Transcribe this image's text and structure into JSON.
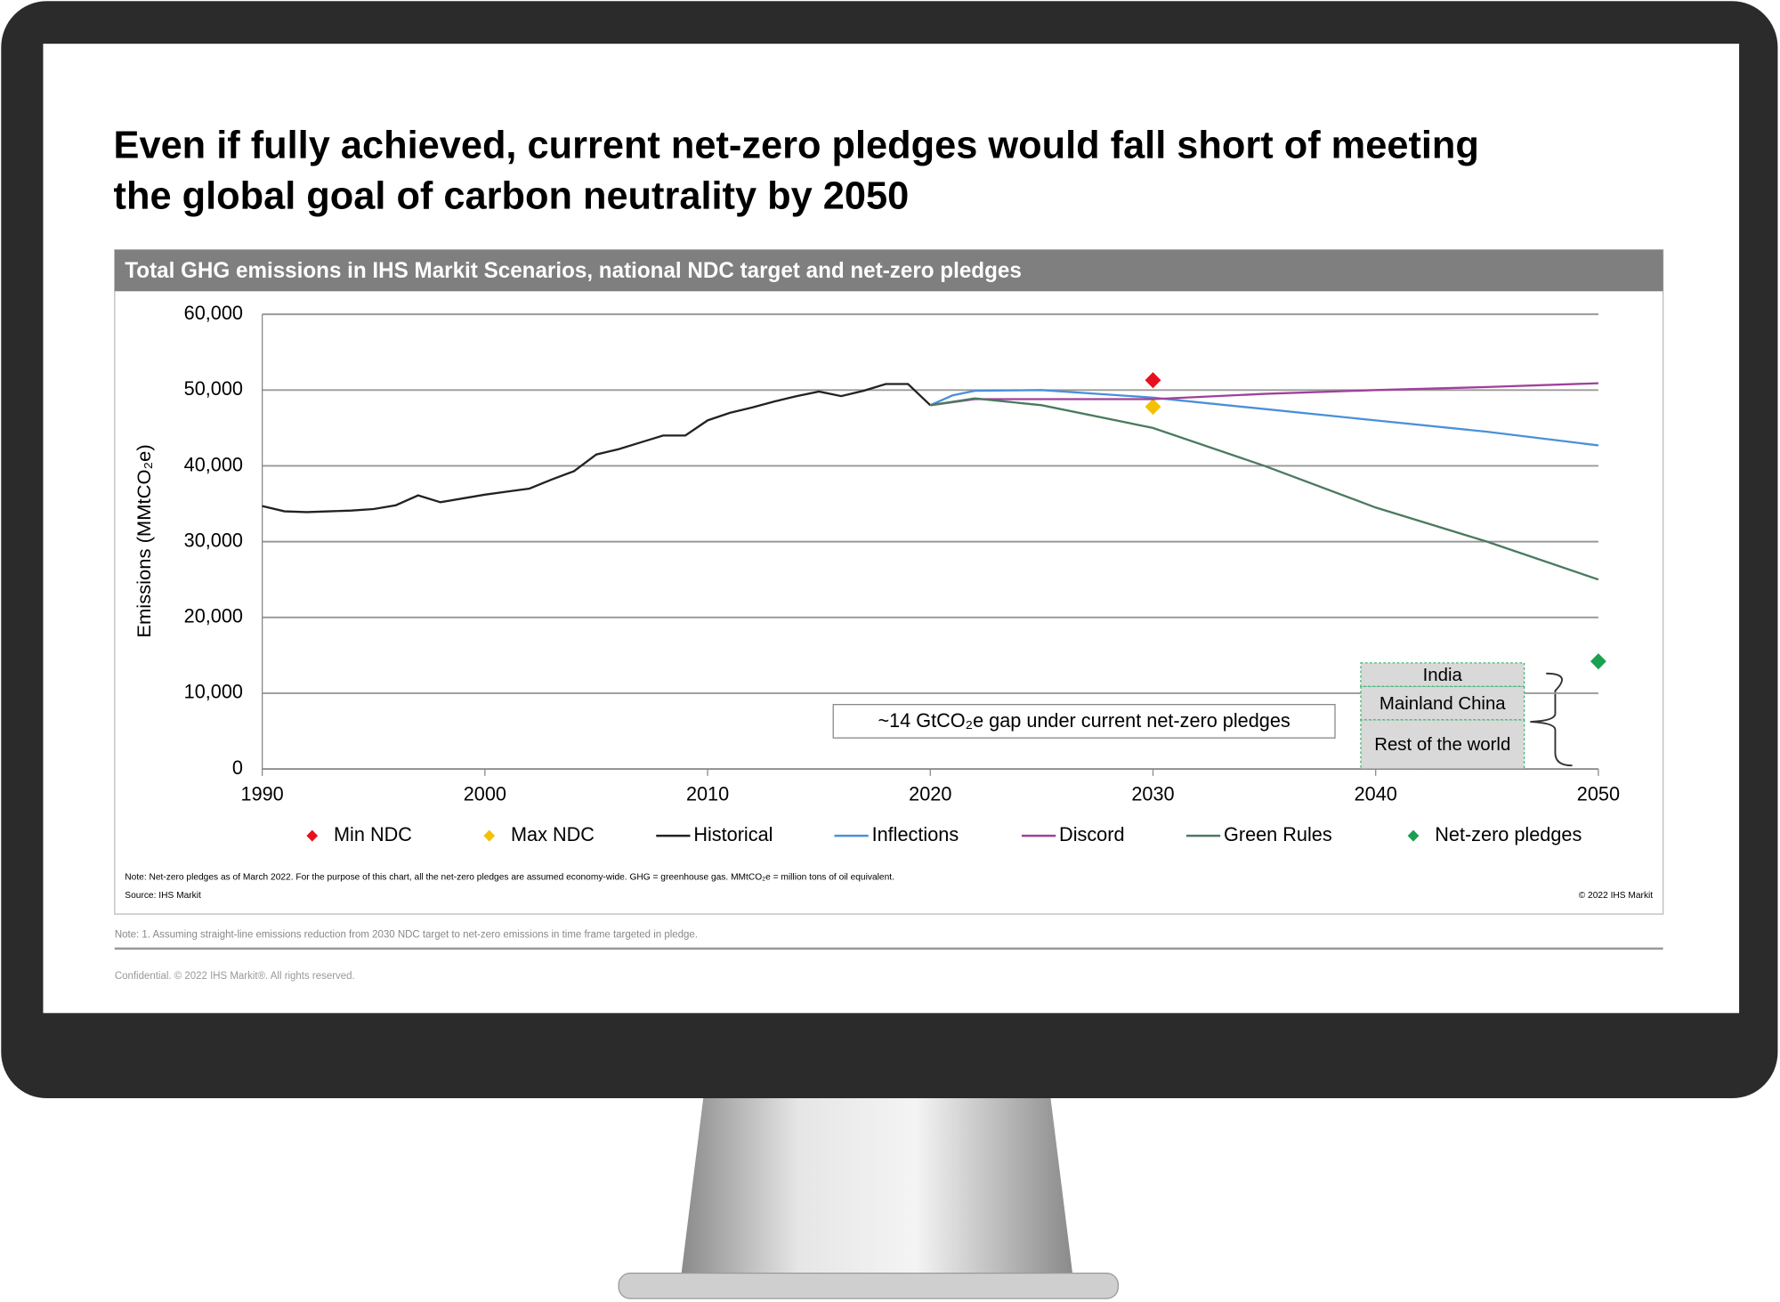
{
  "slide_title": "Even if fully achieved, current net-zero pledges would fall short of meeting the global goal of carbon neutrality by 2050",
  "chart_data": {
    "type": "line",
    "title": "Total GHG emissions in IHS Markit Scenarios, national NDC target and net-zero pledges",
    "y_label": "Emissions (MMtCO₂e)",
    "xlim": [
      1990,
      2050
    ],
    "xticks": [
      1990,
      2000,
      2010,
      2020,
      2030,
      2040,
      2050
    ],
    "ylim": [
      0,
      60000
    ],
    "yticks": [
      0,
      {
        "value": 10000,
        "label": "10,000"
      },
      {
        "value": 20000,
        "label": "20,000"
      },
      {
        "value": 30000,
        "label": "30,000"
      },
      {
        "value": 40000,
        "label": "40,000"
      },
      {
        "value": 50000,
        "label": "50,000"
      },
      {
        "value": 60000,
        "label": "60,000"
      }
    ],
    "grid": true,
    "series": [
      {
        "name": "Min NDC",
        "color": "#e8101c",
        "marker": "diamond",
        "x": [
          2030
        ],
        "values": [
          51300
        ]
      },
      {
        "name": "Max NDC",
        "color": "#f5c000",
        "marker": "diamond",
        "x": [
          2030
        ],
        "values": [
          47800
        ]
      },
      {
        "name": "Historical",
        "color": "#222222",
        "x": [
          1990,
          1991,
          1992,
          1993,
          1994,
          1995,
          1996,
          1997,
          1998,
          1999,
          2000,
          2001,
          2002,
          2003,
          2004,
          2005,
          2006,
          2007,
          2008,
          2009,
          2010,
          2011,
          2012,
          2013,
          2014,
          2015,
          2016,
          2017,
          2018,
          2019,
          2020
        ],
        "values": [
          34700,
          34000,
          33900,
          34000,
          34100,
          34300,
          34800,
          36100,
          35200,
          35700,
          36200,
          36600,
          37000,
          38200,
          39300,
          41500,
          42200,
          43100,
          44000,
          44000,
          46000,
          47000,
          47700,
          48500,
          49200,
          49800,
          49200,
          49900,
          50800,
          50800,
          48000
        ]
      },
      {
        "name": "Inflections",
        "color": "#4a90d9",
        "x": [
          2020,
          2021,
          2022,
          2025,
          2030,
          2035,
          2040,
          2045,
          2050
        ],
        "values": [
          48000,
          49300,
          49900,
          50000,
          49000,
          47500,
          46000,
          44500,
          42700
        ]
      },
      {
        "name": "Discord",
        "color": "#a0409a",
        "x": [
          2020,
          2022,
          2025,
          2030,
          2035,
          2040,
          2045,
          2050
        ],
        "values": [
          48000,
          48800,
          48800,
          48800,
          49500,
          50000,
          50400,
          50900
        ]
      },
      {
        "name": "Green Rules",
        "color": "#4a7a60",
        "x": [
          2020,
          2022,
          2025,
          2030,
          2035,
          2040,
          2045,
          2050
        ],
        "values": [
          48000,
          48900,
          48000,
          45000,
          40000,
          34500,
          30000,
          25000
        ]
      },
      {
        "name": "Net-zero pledges",
        "color": "#1aa050",
        "marker": "diamond",
        "x": [
          2050
        ],
        "values": [
          14200
        ]
      }
    ],
    "gap_breakdown": {
      "x": 2043,
      "categories": [
        "Rest of the world",
        "Mainland China",
        "India"
      ],
      "values": [
        6500,
        4400,
        3100
      ]
    },
    "annotation": "~14 GtCO₂e gap under current net-zero pledges",
    "note": "Note: Net-zero pledges as of March 2022. For the purpose of this chart, all the net-zero pledges are assumed economy-wide. GHG = greenhouse gas. MMtCO₂e = million tons of oil equivalent.",
    "source": "Source: IHS Markit",
    "copyright": "© 2022 IHS Markit"
  },
  "footnote": "Note: 1. Assuming straight-line emissions reduction from 2030 NDC target to net-zero emissions in time frame targeted in pledge.",
  "confidential": "Confidential. © 2022 IHS Markit®. All rights reserved."
}
